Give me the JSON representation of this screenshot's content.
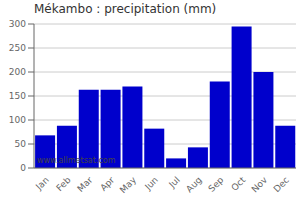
{
  "chart_data": {
    "type": "bar",
    "title": "Mékambo : precipitation (mm)",
    "categories": [
      "Jan",
      "Feb",
      "Mar",
      "Apr",
      "May",
      "Jun",
      "Jul",
      "Aug",
      "Sep",
      "Oct",
      "Nov",
      "Dec"
    ],
    "values": [
      68,
      88,
      163,
      163,
      170,
      82,
      20,
      43,
      180,
      295,
      200,
      88
    ],
    "color": "#0000cc",
    "ylim": [
      0,
      300
    ],
    "yticks": [
      0,
      50,
      100,
      150,
      200,
      250,
      300
    ],
    "grid": true,
    "annotations": [
      "www.allmetsat.com"
    ]
  }
}
